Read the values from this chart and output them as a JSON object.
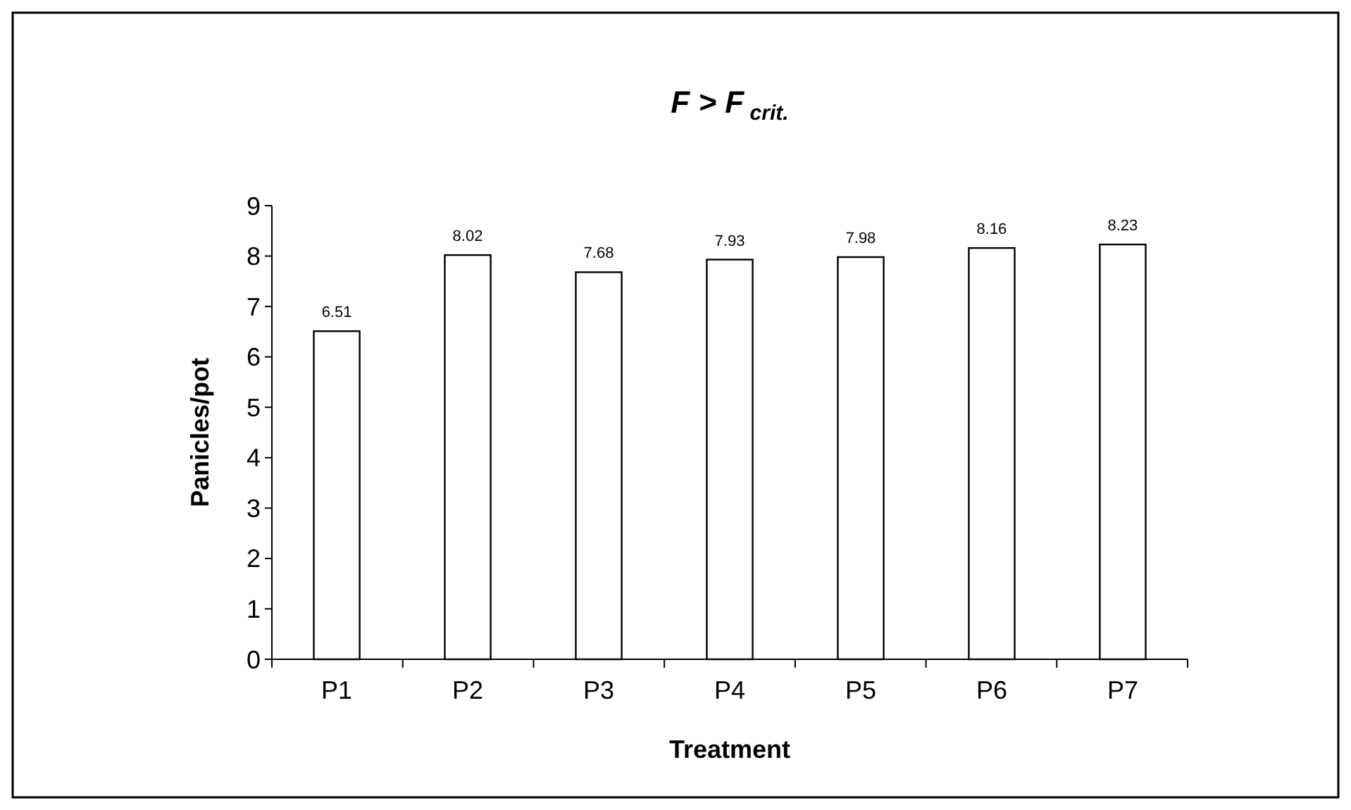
{
  "chart_data": {
    "type": "bar",
    "title": "F > F$_{crit.}$",
    "xlabel": "Treatment",
    "ylabel": "Panicles/pot",
    "categories": [
      "P1",
      "P2",
      "P3",
      "P4",
      "P5",
      "P6",
      "P7"
    ],
    "values": [
      6.51,
      8.02,
      7.68,
      7.93,
      7.98,
      8.16,
      8.23
    ],
    "color": "#ffffff",
    "ylim": [
      0,
      9
    ],
    "yticks": [
      0,
      1,
      2,
      3,
      4,
      5,
      6,
      7,
      8,
      9
    ],
    "data_labels": true,
    "grid": false
  }
}
